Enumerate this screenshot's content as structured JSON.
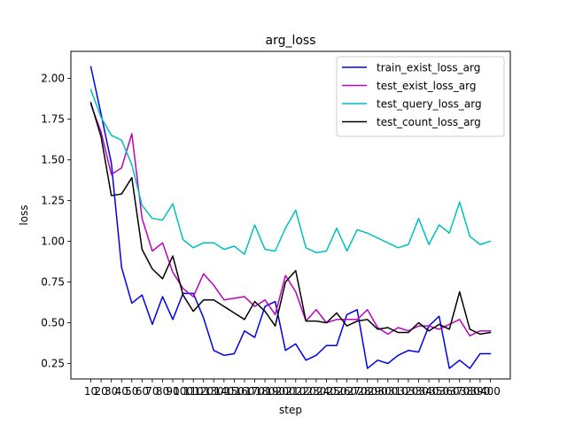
{
  "chart_data": {
    "type": "line",
    "title": "arg_loss",
    "xlabel": "step",
    "ylabel": "loss",
    "x": [
      10,
      20,
      30,
      40,
      50,
      60,
      70,
      80,
      90,
      100,
      110,
      120,
      130,
      140,
      150,
      160,
      170,
      180,
      190,
      200,
      210,
      220,
      230,
      240,
      250,
      260,
      270,
      280,
      290,
      300,
      310,
      320,
      330,
      340,
      350,
      360,
      370,
      380,
      390,
      400
    ],
    "x_tick_labels": [
      "10",
      "20",
      "30",
      "40",
      "50",
      "60",
      "70",
      "80",
      "90",
      "100",
      "110",
      "120",
      "130",
      "140",
      "150",
      "160",
      "170",
      "180",
      "190",
      "200",
      "210",
      "220",
      "230",
      "240",
      "250",
      "260",
      "270",
      "280",
      "290",
      "300",
      "310",
      "320",
      "330",
      "340",
      "350",
      "360",
      "370",
      "380",
      "390",
      "400"
    ],
    "y_ticks": [
      0.25,
      0.5,
      0.75,
      1.0,
      1.25,
      1.5,
      1.75,
      2.0
    ],
    "y_tick_labels": [
      "0.25",
      "0.50",
      "0.75",
      "1.00",
      "1.25",
      "1.50",
      "1.75",
      "2.00"
    ],
    "ylim": [
      0.155,
      2.165
    ],
    "grid": false,
    "legend_position": "top-right",
    "series": [
      {
        "name": "train_exist_loss_arg",
        "color": "#0000ee",
        "values": [
          2.07,
          1.78,
          1.48,
          0.84,
          0.62,
          0.67,
          0.49,
          0.66,
          0.52,
          0.68,
          0.68,
          0.53,
          0.33,
          0.3,
          0.31,
          0.45,
          0.41,
          0.6,
          0.63,
          0.33,
          0.37,
          0.27,
          0.3,
          0.36,
          0.36,
          0.55,
          0.58,
          0.22,
          0.27,
          0.25,
          0.3,
          0.33,
          0.32,
          0.48,
          0.54,
          0.22,
          0.27,
          0.22,
          0.31,
          0.31
        ]
      },
      {
        "name": "test_exist_loss_arg",
        "color": "#bf00bf",
        "values": [
          1.84,
          1.67,
          1.41,
          1.45,
          1.66,
          1.14,
          0.94,
          0.99,
          0.81,
          0.71,
          0.66,
          0.8,
          0.73,
          0.64,
          0.65,
          0.66,
          0.6,
          0.64,
          0.55,
          0.79,
          0.69,
          0.51,
          0.58,
          0.5,
          0.52,
          0.52,
          0.52,
          0.58,
          0.47,
          0.43,
          0.47,
          0.45,
          0.48,
          0.48,
          0.46,
          0.49,
          0.52,
          0.42,
          0.45,
          0.45
        ]
      },
      {
        "name": "test_query_loss_arg",
        "color": "#00bfbf",
        "values": [
          1.93,
          1.76,
          1.65,
          1.62,
          1.47,
          1.22,
          1.14,
          1.13,
          1.23,
          1.01,
          0.96,
          0.99,
          0.99,
          0.95,
          0.97,
          0.92,
          1.1,
          0.95,
          0.94,
          1.08,
          1.19,
          0.96,
          0.93,
          0.94,
          1.08,
          0.94,
          1.07,
          1.05,
          1.02,
          0.99,
          0.96,
          0.98,
          1.14,
          0.98,
          1.1,
          1.05,
          1.24,
          1.03,
          0.98,
          1.0
        ]
      },
      {
        "name": "test_count_loss_arg",
        "color": "#000000",
        "values": [
          1.85,
          1.64,
          1.28,
          1.29,
          1.39,
          0.95,
          0.83,
          0.77,
          0.91,
          0.67,
          0.57,
          0.64,
          0.64,
          0.6,
          0.56,
          0.52,
          0.63,
          0.57,
          0.48,
          0.75,
          0.82,
          0.51,
          0.51,
          0.5,
          0.56,
          0.48,
          0.51,
          0.52,
          0.46,
          0.47,
          0.44,
          0.44,
          0.5,
          0.45,
          0.49,
          0.46,
          0.69,
          0.46,
          0.43,
          0.44
        ]
      }
    ]
  }
}
